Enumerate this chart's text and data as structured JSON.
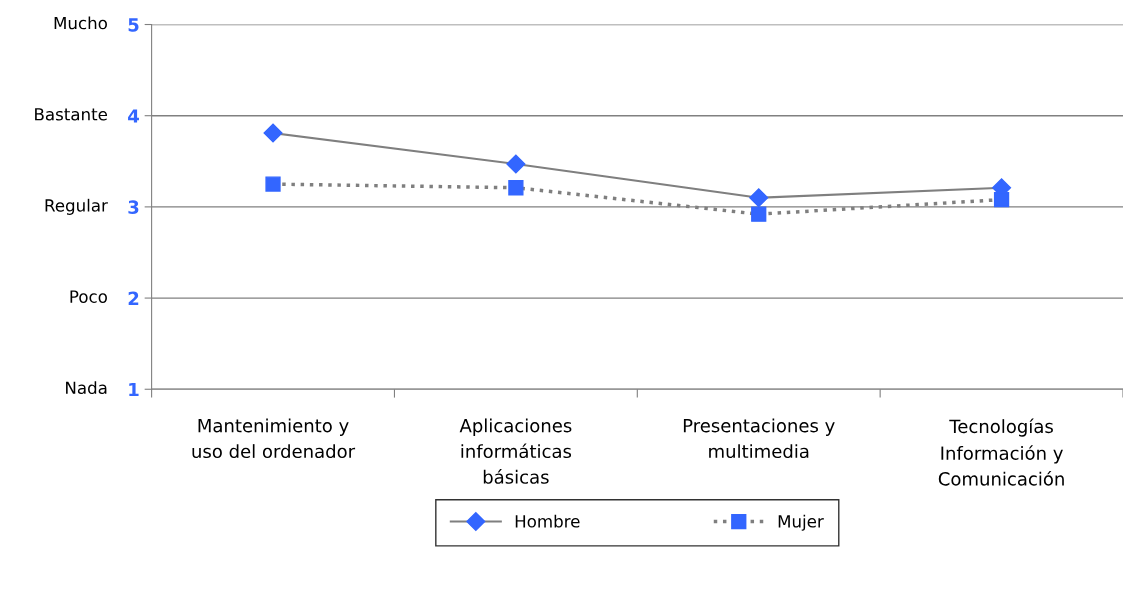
{
  "chart_data": {
    "type": "line",
    "categories": [
      "Mantenimiento y\nuso del ordenador",
      "Aplicaciones\ninformáticas\nbásicas",
      "Presentaciones y\nmultimedia",
      "Tecnologías\nInformación y\nComunicación"
    ],
    "series": [
      {
        "name": "Hombre",
        "color": "#3366ff",
        "marker": "diamond",
        "line_style": "solid",
        "values": [
          3.81,
          3.47,
          3.1,
          3.21
        ]
      },
      {
        "name": "Mujer",
        "color": "#3366ff",
        "marker": "square",
        "line_style": "dotted",
        "values": [
          3.25,
          3.21,
          2.92,
          3.08
        ]
      }
    ],
    "ylim": [
      1,
      5
    ],
    "yticks": [
      1,
      2,
      3,
      4,
      5
    ],
    "annotations": [
      "Nada",
      "Poco",
      "Regular",
      "Bastante",
      "Mucho"
    ],
    "grid": "y",
    "legend": "bottom"
  }
}
